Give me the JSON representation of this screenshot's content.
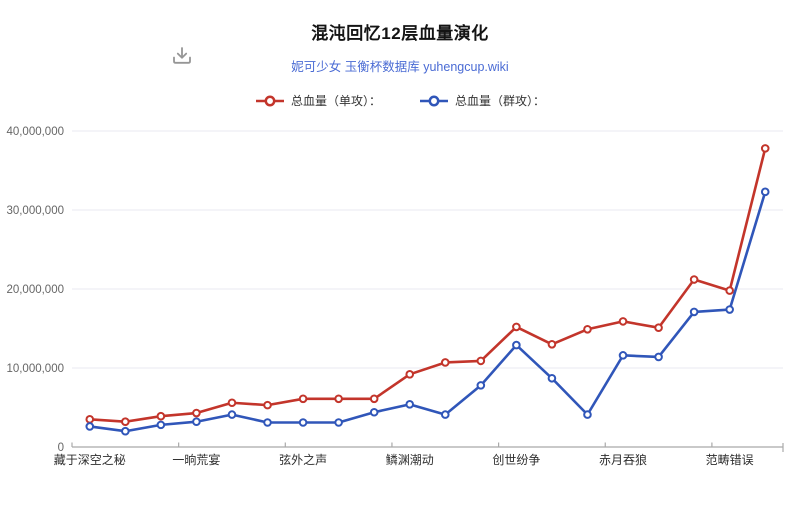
{
  "header": {
    "title": "混沌回忆12层血量演化",
    "subtitle": "妮可少女 玉衡杯数据库 yuhengcup.wiki"
  },
  "icons": {
    "download": "download-tray-arrow"
  },
  "colors": {
    "single_target": "#c3352b",
    "aoe": "#3056b9",
    "subtitle_link": "#4a6bd4",
    "title_text": "#141414",
    "grid": "#e9e9f1",
    "axis": "#a9a9a9",
    "y_label": "#666666",
    "x_label": "#2e2e2e",
    "icon": "#969696"
  },
  "chart_data": {
    "type": "line",
    "title": "混沌回忆12层血量演化",
    "subtitle": "妮可少女 玉衡杯数据库 yuhengcup.wiki",
    "legend_position": "top",
    "grid": true,
    "ylim": [
      0,
      40000000
    ],
    "y_ticks": [
      {
        "value": 0,
        "label": "0"
      },
      {
        "value": 10000000,
        "label": "10,000,000"
      },
      {
        "value": 20000000,
        "label": "20,000,000"
      },
      {
        "value": 30000000,
        "label": "30,000,000"
      },
      {
        "value": 40000000,
        "label": "40,000,000"
      }
    ],
    "x_point_count": 20,
    "x_tick_labels": [
      {
        "index": 0,
        "label": "藏于深空之秘"
      },
      {
        "index": 3,
        "label": "一晌荒宴"
      },
      {
        "index": 6,
        "label": "弦外之声"
      },
      {
        "index": 9,
        "label": "鳞渊潮动"
      },
      {
        "index": 12,
        "label": "创世纷争"
      },
      {
        "index": 15,
        "label": "赤月吞狼"
      },
      {
        "index": 18,
        "label": "范畴错误"
      }
    ],
    "series": [
      {
        "name": "总血量（单攻）：",
        "color": "#c3352b",
        "values": [
          3500000,
          3200000,
          3900000,
          4300000,
          5600000,
          5300000,
          6100000,
          6100000,
          6100000,
          9200000,
          10700000,
          10900000,
          15200000,
          13000000,
          14900000,
          15900000,
          15100000,
          21200000,
          19800000,
          37800000
        ]
      },
      {
        "name": "总血量（群攻）：",
        "color": "#3056b9",
        "values": [
          2600000,
          2000000,
          2800000,
          3200000,
          4100000,
          3100000,
          3100000,
          3100000,
          4400000,
          5400000,
          4100000,
          7800000,
          12900000,
          8700000,
          4100000,
          11600000,
          11400000,
          17100000,
          17400000,
          32300000
        ]
      }
    ]
  }
}
